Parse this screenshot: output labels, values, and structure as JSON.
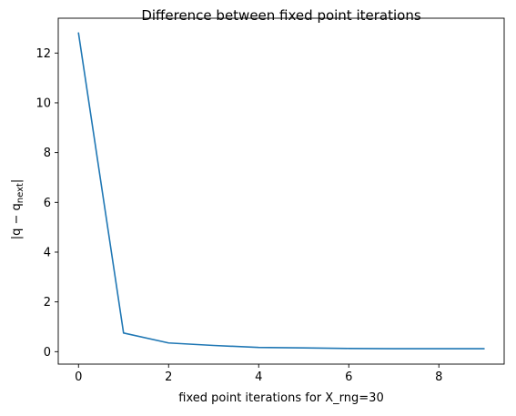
{
  "chart_data": {
    "type": "line",
    "title": "Difference between fixed point iterations",
    "xlabel": "fixed point iterations for X_rng=30",
    "ylabel": "|q − q_next|",
    "ylabel_parts": {
      "prefix": "|q − q",
      "subscript": "next",
      "suffix": "|"
    },
    "x": [
      0,
      1,
      2,
      3,
      4,
      5,
      6,
      7,
      8,
      9
    ],
    "series": [
      {
        "values": [
          12.8,
          0.75,
          0.35,
          0.25,
          0.17,
          0.15,
          0.13,
          0.12,
          0.12,
          0.12
        ],
        "color": "#1f77b4"
      }
    ],
    "xlim": [
      -0.45,
      9.45
    ],
    "ylim": [
      -0.5,
      13.4
    ],
    "xticks": [
      0,
      2,
      4,
      6,
      8
    ],
    "yticks": [
      0,
      2,
      4,
      6,
      8,
      10,
      12
    ],
    "grid": false,
    "legend": "none"
  }
}
